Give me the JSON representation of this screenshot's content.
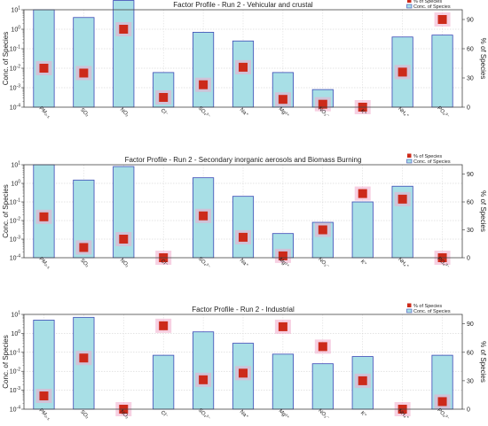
{
  "chart_data": [
    {
      "type": "bar",
      "title": "Factor Profile - Run 2 - Vehicular and crustal",
      "ylabel": "Conc. of Species",
      "y2label": "% of Species",
      "yscale": "log",
      "ylim": [
        0.0001,
        10
      ],
      "y2lim": [
        0,
        100
      ],
      "y2ticks": [
        "0",
        "30",
        "60",
        "90"
      ],
      "ytick_labels": [
        "10^-4",
        "10^-3",
        "10^-2",
        "10^-1",
        "10^0",
        "10^1"
      ],
      "grid": true,
      "legend_position": "top-right",
      "categories": [
        "PM₂.₅",
        "SO₂",
        "NO₂",
        "Cl⁻",
        "SO₄²⁻",
        "Na⁺",
        "Mg²⁺",
        "NO₃⁻",
        "K⁺",
        "NH₄⁺",
        "PO₄³⁻"
      ],
      "series": [
        {
          "name": "Conc. of Species",
          "kind": "bar",
          "color": "#a8dfe6",
          "edge": "#3a49b5",
          "values": [
            10,
            4,
            30,
            0.006,
            0.7,
            0.25,
            0.006,
            0.0008,
            0.0001,
            0.4,
            0.5
          ]
        },
        {
          "name": "% of Species",
          "kind": "marker",
          "color": "#cc2a1a",
          "halo": "#f0aacb",
          "values": [
            40,
            35,
            80,
            10,
            23,
            41,
            8,
            3,
            0,
            36,
            90
          ]
        }
      ]
    },
    {
      "type": "bar",
      "title": "Factor Profile - Run 2 - Secondary inorganic aerosols and Biomass Burning",
      "ylabel": "Conc. of Species",
      "y2label": "% of Species",
      "yscale": "log",
      "ylim": [
        0.0001,
        10
      ],
      "y2lim": [
        0,
        100
      ],
      "y2ticks": [
        "0",
        "30",
        "60",
        "90"
      ],
      "ytick_labels": [
        "10^-4",
        "10^-3",
        "10^-2",
        "10^-1",
        "10^0",
        "10^1"
      ],
      "grid": true,
      "legend_position": "top-right",
      "categories": [
        "PM₂.₅",
        "SO₂",
        "NO₂",
        "Cl⁻",
        "SO₄²⁻",
        "Na⁺",
        "Mg²⁺",
        "NO₃⁻",
        "K⁺",
        "NH₄⁺",
        "PO₄³⁻"
      ],
      "series": [
        {
          "name": "Conc. of Species",
          "kind": "bar",
          "color": "#a8dfe6",
          "edge": "#3a49b5",
          "values": [
            10,
            1.5,
            8,
            0.0001,
            2,
            0.2,
            0.002,
            0.008,
            0.1,
            0.7,
            0.0001
          ]
        },
        {
          "name": "% of Species",
          "kind": "marker",
          "color": "#cc2a1a",
          "halo": "#f0aacb",
          "values": [
            44,
            11,
            20,
            0,
            45,
            22,
            2,
            30,
            69,
            63,
            0
          ]
        }
      ]
    },
    {
      "type": "bar",
      "title": "Factor Profile - Run 2 - Industrial",
      "ylabel": "Conc. of Species",
      "y2label": "% of Species",
      "yscale": "log",
      "ylim": [
        0.0001,
        10
      ],
      "y2lim": [
        0,
        100
      ],
      "y2ticks": [
        "0",
        "30",
        "60",
        "90"
      ],
      "ytick_labels": [
        "10^-4",
        "10^-3",
        "10^-2",
        "10^-1",
        "10^0",
        "10^1"
      ],
      "grid": true,
      "legend_position": "top-right",
      "categories": [
        "PM₂.₅",
        "SO₂",
        "NO₂",
        "Cl⁻",
        "SO₄²⁻",
        "Na⁺",
        "Mg²⁺",
        "NO₃⁻",
        "K⁺",
        "NH₄⁺",
        "PO₄³⁻"
      ],
      "series": [
        {
          "name": "Conc. of Species",
          "kind": "bar",
          "color": "#a8dfe6",
          "edge": "#3a49b5",
          "values": [
            5,
            7,
            0.0001,
            0.07,
            1.2,
            0.3,
            0.08,
            0.025,
            0.06,
            0.0001,
            0.07
          ]
        },
        {
          "name": "% of Species",
          "kind": "marker",
          "color": "#cc2a1a",
          "halo": "#f0aacb",
          "values": [
            14,
            54,
            0,
            88,
            31,
            38,
            87,
            66,
            30,
            0,
            8
          ]
        }
      ]
    }
  ]
}
